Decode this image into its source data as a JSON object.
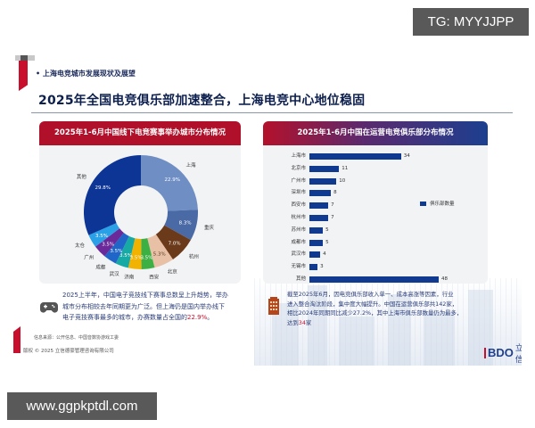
{
  "watermarks": {
    "top_right": "TG: MYYJJPP",
    "bottom_left": "www.ggpkptdl.com"
  },
  "header": {
    "section_label": "• 上海电竞城市发展现状及展望",
    "title": "2025年全国电竞俱乐部加速整合，上海电竞中心地位稳固"
  },
  "left_panel": {
    "title": "2025年1-6月中国线下电竞赛事举办城市分布情况"
  },
  "right_panel": {
    "title": "2025年1-6月中国在运营电竞俱乐部分布情况",
    "legend": "俱乐部数量"
  },
  "chart_data": [
    {
      "type": "pie",
      "variant": "donut",
      "title": "2025年1-6月中国线下电竞赛事举办城市分布情况",
      "categories": [
        "上海",
        "重庆",
        "杭州",
        "北京",
        "西安",
        "济南",
        "武汉",
        "成都",
        "广州",
        "太仓",
        "其他"
      ],
      "values": [
        22.9,
        8.3,
        7.0,
        5.3,
        3.5,
        3.5,
        3.5,
        3.5,
        3.5,
        3.5,
        29.8
      ],
      "labels": [
        "22.9%",
        "8.3%",
        "7.0%",
        "5.3%",
        "3.5%",
        "3.5%",
        "3.5%",
        "3.5%",
        "3.5%",
        "3.5%",
        "29.8%"
      ],
      "colors": [
        "#6f8fc4",
        "#4a6aa6",
        "#6b3a1a",
        "#e8c0a6",
        "#3cb043",
        "#f2b200",
        "#17a9a3",
        "#1f66c8",
        "#6a2a9a",
        "#2aa0e6",
        "#0d3596"
      ],
      "unit": "%"
    },
    {
      "type": "bar",
      "orientation": "horizontal",
      "title": "2025年1-6月中国在运营电竞俱乐部分布情况",
      "categories": [
        "上海市",
        "北京市",
        "广州市",
        "深圳市",
        "西安市",
        "杭州市",
        "苏州市",
        "成都市",
        "武汉市",
        "无锡市",
        "其他"
      ],
      "series": [
        {
          "name": "俱乐部数量",
          "values": [
            34,
            11,
            10,
            8,
            7,
            7,
            5,
            5,
            4,
            3,
            48
          ]
        }
      ],
      "color": "#0f3a8f",
      "legend_position": "right",
      "grid": false
    }
  ],
  "notes": {
    "left": {
      "line1": "2025上半年，中国电子竞技线下赛事总数呈上升趋势，举办",
      "line2": "城市分布相较去年同期更为广泛。但上海仍是国内举办线下",
      "line3_pre": "电子竞技赛事最多的城市，办赛数量占全国的",
      "line3_hl": "22.9%",
      "line3_post": "。"
    },
    "right": {
      "line1": "截至2025年6月，因电竞俱乐部收入单一、成本高涨等因素，行业",
      "line2": "进入整合淘汰阶段，集中度大幅提升。中国在运营俱乐部共142家，",
      "line3": "相比2024年同期同比减少27.2%，其中上海市俱乐部数量仍为最多，",
      "line4_pre": "达到",
      "line4_hl": "34",
      "line4_post": "家"
    }
  },
  "footer": {
    "source": "信息来源：公开信息、中国音数协游戏工委",
    "copyright": "版权 © 2025 立信德豪管理咨询有限公司",
    "logo_text": "BDO",
    "logo_cn": "立信"
  }
}
